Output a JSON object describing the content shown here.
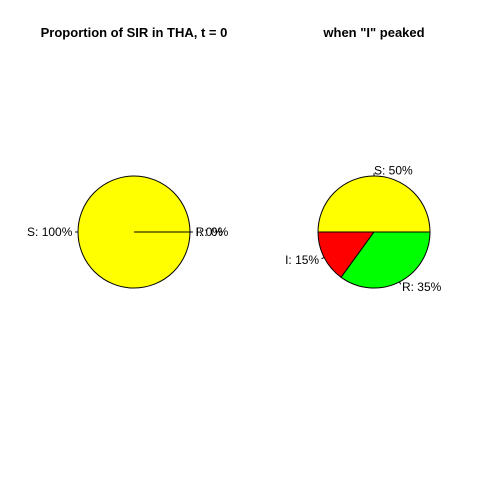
{
  "chart_data": [
    {
      "type": "pie",
      "title": "Proportion of SIR in THA, t = 0",
      "slices": [
        {
          "label": "S:  100%",
          "value": 100,
          "color": "#FFFF00"
        },
        {
          "label": "I:  0%",
          "value": 0,
          "color": "#FF0000"
        },
        {
          "label": "R:  0%",
          "value": 0,
          "color": "#00FF00"
        }
      ]
    },
    {
      "type": "pie",
      "title": "when \"I\" peaked",
      "slices": [
        {
          "label": "S:  50%",
          "value": 50,
          "color": "#FFFF00"
        },
        {
          "label": "I:  15%",
          "value": 15,
          "color": "#FF0000"
        },
        {
          "label": "R:  35%",
          "value": 35,
          "color": "#00FF00"
        }
      ]
    }
  ]
}
